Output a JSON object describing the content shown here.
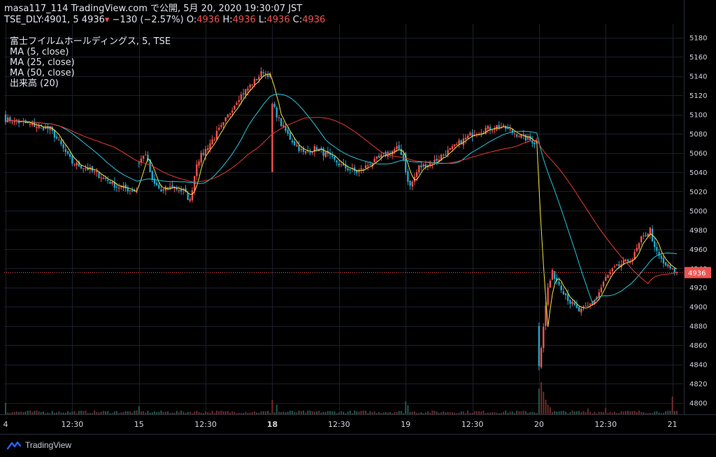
{
  "header": {
    "publish_line": "masa117_114 TradingView.com で公開, 5月 20, 2020 19:30:07 JST",
    "symbol": "TSE_DLY:4901, 5",
    "last": "4936",
    "change": "−130 (−2.57%)",
    "o_label": "O:",
    "o_value": "4936",
    "h_label": "H:",
    "h_value": "4936",
    "l_label": "L:",
    "l_value": "4936",
    "c_label": "C:",
    "c_value": "4936"
  },
  "legend": {
    "title": "富士フイルムホールディングス, 5, TSE",
    "ma5": "MA (5, close)",
    "ma25": "MA (25, close)",
    "ma50": "MA (50, close)",
    "volume": "出来高 (20)"
  },
  "brand": {
    "name": "TradingView",
    "icon": "tradingview-logo-icon"
  },
  "colors": {
    "background": "#000000",
    "grid": "#1c1f2b",
    "up": "#ef5350",
    "down": "#26a6c9",
    "ma5": "#f0e442",
    "ma25": "#26c6da",
    "ma50": "#e53935",
    "price_line": "#ef5350",
    "axis_text": "#d1d4dc"
  },
  "chart_data": {
    "type": "candlestick",
    "interval": "5m",
    "y_axis": {
      "ylim": [
        4788,
        5190
      ],
      "ticks": [
        4800,
        4820,
        4840,
        4860,
        4880,
        4900,
        4920,
        4940,
        4960,
        4980,
        5000,
        5020,
        5040,
        5060,
        5080,
        5100,
        5120,
        5140,
        5160,
        5180
      ]
    },
    "x_axis": {
      "ticks": [
        {
          "label": "4",
          "bar": 0,
          "bold": false
        },
        {
          "label": "12:30",
          "bar": 30,
          "bold": false
        },
        {
          "label": "15",
          "bar": 60,
          "bold": false
        },
        {
          "label": "12:30",
          "bar": 90,
          "bold": false
        },
        {
          "label": "18",
          "bar": 120,
          "bold": true
        },
        {
          "label": "12:30",
          "bar": 150,
          "bold": false
        },
        {
          "label": "19",
          "bar": 180,
          "bold": false
        },
        {
          "label": "12:30",
          "bar": 210,
          "bold": false
        },
        {
          "label": "20",
          "bar": 240,
          "bold": false
        },
        {
          "label": "12:30",
          "bar": 270,
          "bold": false
        },
        {
          "label": "21",
          "bar": 300,
          "bold": false
        }
      ]
    },
    "last_price": 4936,
    "last_price_label": "4936",
    "session_starts": [
      0,
      60,
      120,
      180,
      240
    ],
    "session_opens": [
      5100,
      5050,
      5040,
      5060,
      4880
    ],
    "close_keypoints": [
      [
        0,
        5095
      ],
      [
        10,
        5090
      ],
      [
        20,
        5085
      ],
      [
        30,
        5050
      ],
      [
        40,
        5040
      ],
      [
        50,
        5025
      ],
      [
        59,
        5020
      ],
      [
        60,
        5050
      ],
      [
        63,
        5060
      ],
      [
        66,
        5030
      ],
      [
        70,
        5020
      ],
      [
        75,
        5025
      ],
      [
        80,
        5020
      ],
      [
        83,
        5010
      ],
      [
        86,
        5050
      ],
      [
        92,
        5070
      ],
      [
        98,
        5090
      ],
      [
        104,
        5115
      ],
      [
        110,
        5130
      ],
      [
        116,
        5145
      ],
      [
        119,
        5140
      ],
      [
        120,
        5110
      ],
      [
        124,
        5090
      ],
      [
        128,
        5075
      ],
      [
        134,
        5060
      ],
      [
        140,
        5065
      ],
      [
        146,
        5055
      ],
      [
        152,
        5045
      ],
      [
        158,
        5040
      ],
      [
        165,
        5050
      ],
      [
        172,
        5060
      ],
      [
        176,
        5065
      ],
      [
        179,
        5055
      ],
      [
        180,
        5040
      ],
      [
        182,
        5025
      ],
      [
        186,
        5045
      ],
      [
        192,
        5050
      ],
      [
        198,
        5060
      ],
      [
        204,
        5070
      ],
      [
        210,
        5080
      ],
      [
        216,
        5085
      ],
      [
        222,
        5088
      ],
      [
        228,
        5082
      ],
      [
        234,
        5075
      ],
      [
        239,
        5070
      ],
      [
        240,
        4840
      ],
      [
        241,
        4860
      ],
      [
        242,
        4880
      ],
      [
        244,
        4920
      ],
      [
        246,
        4935
      ],
      [
        250,
        4920
      ],
      [
        254,
        4905
      ],
      [
        258,
        4895
      ],
      [
        262,
        4900
      ],
      [
        266,
        4910
      ],
      [
        270,
        4930
      ],
      [
        274,
        4940
      ],
      [
        278,
        4945
      ],
      [
        282,
        4950
      ],
      [
        286,
        4970
      ],
      [
        290,
        4980
      ],
      [
        292,
        4960
      ],
      [
        296,
        4945
      ],
      [
        300,
        4938
      ],
      [
        302,
        4936
      ]
    ],
    "volume": {
      "base": 8,
      "spikes": [
        [
          0,
          35
        ],
        [
          60,
          25
        ],
        [
          120,
          45
        ],
        [
          122,
          30
        ],
        [
          180,
          40
        ],
        [
          181,
          28
        ],
        [
          240,
          80
        ],
        [
          241,
          100
        ],
        [
          242,
          70
        ],
        [
          243,
          45
        ],
        [
          244,
          30
        ],
        [
          245,
          22
        ],
        [
          262,
          18
        ],
        [
          270,
          20
        ],
        [
          300,
          55
        ]
      ]
    }
  }
}
